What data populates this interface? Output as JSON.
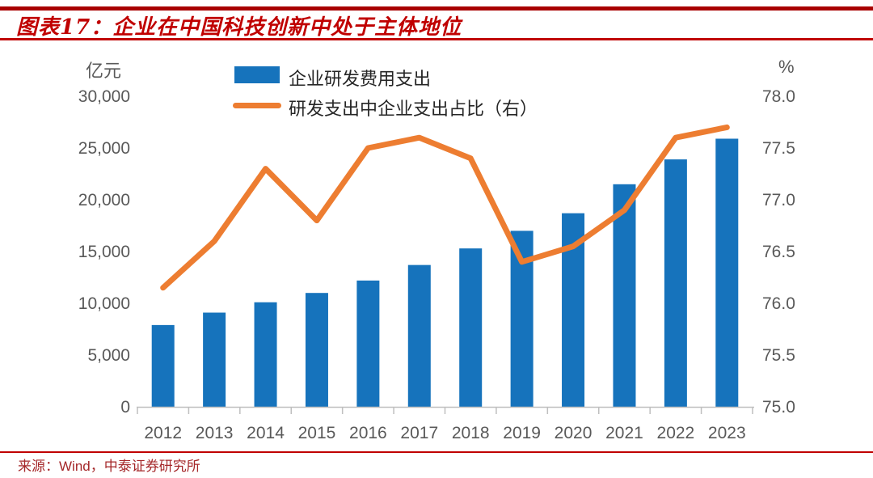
{
  "header": {
    "title": "图表17：企业在中国科技创新中处于主体地位"
  },
  "chart_data": {
    "type": "bar",
    "subtype": "bar-line-combo",
    "categories": [
      "2012",
      "2013",
      "2014",
      "2015",
      "2016",
      "2017",
      "2018",
      "2019",
      "2020",
      "2021",
      "2022",
      "2023"
    ],
    "series": [
      {
        "name": "企业研发费用支出",
        "type": "bar",
        "axis": "left",
        "color": "#1673bc",
        "values": [
          7900,
          9100,
          10100,
          11000,
          12200,
          13700,
          15300,
          17000,
          18700,
          21500,
          23900,
          25900
        ]
      },
      {
        "name": "研发支出中企业支出占比（右）",
        "type": "line",
        "axis": "right",
        "color": "#ed7d31",
        "values": [
          76.15,
          76.6,
          77.3,
          76.8,
          77.5,
          77.6,
          77.4,
          76.4,
          76.55,
          76.9,
          77.6,
          77.7
        ]
      }
    ],
    "left_axis": {
      "unit": "亿元",
      "min": 0,
      "max": 30000,
      "tick_step": 5000,
      "ticks": [
        "0",
        "5,000",
        "10,000",
        "15,000",
        "20,000",
        "25,000",
        "30,000"
      ]
    },
    "right_axis": {
      "unit": "%",
      "min": 75,
      "max": 78,
      "tick_step": 0.5,
      "ticks": [
        "75.0",
        "75.5",
        "76.0",
        "76.5",
        "77.0",
        "77.5",
        "78.0"
      ]
    },
    "legend_position": "top-center",
    "grid": false
  },
  "footer": {
    "source": "来源：Wind，中泰证券研究所"
  },
  "colors": {
    "accent_red": "#c00000",
    "bar_blue": "#1673bc",
    "line_orange": "#ed7d31",
    "axis_text": "#595959",
    "axis_line": "#bfbfbf",
    "legend_text": "#262626",
    "source_red": "#a5282a"
  }
}
